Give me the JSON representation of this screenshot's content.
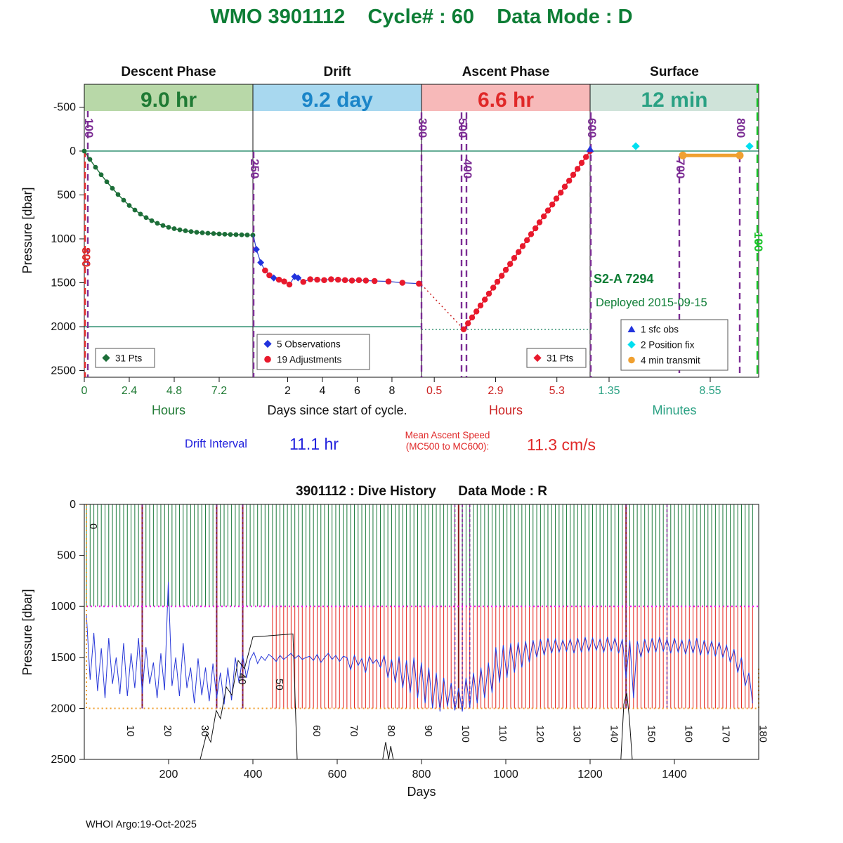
{
  "page": {
    "title": "WMO 3901112    Cycle# : 60    Data Mode : D",
    "title_color": "#0d7d35",
    "footer": "WHOI Argo:19-Oct-2025"
  },
  "chart_data": [
    {
      "type": "line+scatter (cycle timeline, 4 phase axes)",
      "ylabel": "Pressure [dbar]",
      "yticks": [
        -500,
        0,
        500,
        1000,
        1500,
        2000,
        2500
      ],
      "ylim": [
        -760,
        2570
      ],
      "surface_line": 0,
      "park_line": 2000,
      "phases": [
        {
          "title": "Descent Phase",
          "duration": "9.0 hr",
          "band_color": "#b8d8a8",
          "duration_color": "#1f7a34",
          "axis_color": "#1f7a34",
          "axis_unit": "Hours",
          "ticks": [
            "0",
            "2.4",
            "4.8",
            "7.2"
          ],
          "tick_vals": [
            0,
            2.4,
            4.8,
            7.2
          ],
          "range": [
            0,
            9.0
          ]
        },
        {
          "title": "Drift",
          "duration": "9.2 day",
          "band_color": "#a8d8ef",
          "duration_color": "#1b85c8",
          "axis_color": "#111111",
          "axis_unit": "Days since start of cycle.",
          "ticks": [
            "2",
            "4",
            "6",
            "8"
          ],
          "tick_vals": [
            2,
            4,
            6,
            8
          ],
          "range": [
            0,
            9.7
          ]
        },
        {
          "title": "Ascent Phase",
          "duration": "6.6 hr",
          "band_color": "#f7b9b9",
          "duration_color": "#e02828",
          "axis_color": "#cc2222",
          "axis_unit": "Hours",
          "ticks": [
            "0.5",
            "2.9",
            "5.3"
          ],
          "tick_vals": [
            0.5,
            2.9,
            5.3
          ],
          "range": [
            0,
            6.6
          ]
        },
        {
          "title": "Surface",
          "duration": "12 min",
          "band_color": "#cfe3d9",
          "duration_color": "#2aa183",
          "axis_color": "#2aa183",
          "axis_unit": "Minutes",
          "ticks": [
            "1.35",
            "8.55"
          ],
          "tick_vals": [
            1.35,
            8.55
          ],
          "range": [
            0,
            12
          ]
        }
      ],
      "mc_lines": [
        {
          "label": "100",
          "x": 125,
          "y1": 158,
          "y2": 537,
          "ly": 168,
          "color": "#7c2d94"
        },
        {
          "label": "800",
          "x": 121,
          "y1": 215,
          "y2": 537,
          "ly": 352,
          "color": "#e02828"
        },
        {
          "label": "250",
          "x": 361,
          "y1": 216,
          "y2": 537,
          "ly": 226,
          "color": "#7c2d94"
        },
        {
          "label": "300",
          "x": 600,
          "y1": 160,
          "y2": 537,
          "ly": 168,
          "color": "#7c2d94"
        },
        {
          "label": "500",
          "x": 657,
          "y1": 160,
          "y2": 537,
          "ly": 168,
          "color": "#7c2d94"
        },
        {
          "label": "400",
          "x": 664,
          "y1": 160,
          "y2": 537,
          "ly": 226,
          "color": "#7c2d94"
        },
        {
          "label": "600",
          "x": 841,
          "y1": 160,
          "y2": 537,
          "ly": 168,
          "color": "#7c2d94"
        },
        {
          "label": "700",
          "x": 967,
          "y1": 222,
          "y2": 537,
          "ly": 226,
          "color": "#7c2d94"
        },
        {
          "label": "800",
          "x": 1053,
          "y1": 222,
          "y2": 537,
          "ly": 168,
          "color": "#7c2d94"
        },
        {
          "label": "100",
          "x": 1078,
          "y1": 120,
          "y2": 537,
          "ly": 330,
          "color": "#17c427",
          "dash": "12,8"
        }
      ],
      "descent": {
        "color": "#1c6e38",
        "hours": [
          0,
          0.3,
          0.6,
          0.9,
          1.2,
          1.5,
          1.8,
          2.1,
          2.4,
          2.7,
          3,
          3.3,
          3.6,
          3.9,
          4.2,
          4.5,
          4.8,
          5.1,
          5.4,
          5.7,
          6,
          6.3,
          6.6,
          6.9,
          7.2,
          7.5,
          7.8,
          8.1,
          8.4,
          8.7,
          9
        ],
        "pressure": [
          0,
          95,
          185,
          270,
          350,
          425,
          495,
          560,
          620,
          672,
          718,
          758,
          793,
          823,
          848,
          868,
          884,
          897,
          908,
          917,
          925,
          931,
          936,
          940,
          944,
          947,
          950,
          952,
          954,
          956,
          958
        ]
      },
      "drift": {
        "obs_color": "#2233dd",
        "adj_color": "#e8192c",
        "days": [
          0.05,
          0.2,
          0.45,
          0.7,
          0.95,
          1.2,
          1.5,
          1.8,
          2.1,
          2.4,
          2.6,
          2.9,
          3.3,
          3.7,
          4.1,
          4.5,
          4.9,
          5.3,
          5.7,
          6.1,
          6.5,
          7,
          7.8,
          8.6,
          9.55
        ],
        "pressure": [
          980,
          1120,
          1270,
          1360,
          1415,
          1445,
          1465,
          1485,
          1520,
          1430,
          1445,
          1490,
          1460,
          1465,
          1470,
          1460,
          1465,
          1470,
          1475,
          1470,
          1475,
          1480,
          1485,
          1500,
          1510
        ],
        "type": [
          "l",
          "b",
          "b",
          "r",
          "r",
          "b",
          "r",
          "r",
          "r",
          "b",
          "b",
          "r",
          "r",
          "r",
          "r",
          "r",
          "r",
          "r",
          "r",
          "r",
          "r",
          "r",
          "r",
          "r",
          "r"
        ]
      },
      "deep_descent": {
        "hours": [
          0,
          1.65
        ],
        "pressure": [
          1520,
          2030
        ]
      },
      "ascent": {
        "color": "#e8192c",
        "hours": [
          1.65,
          1.82,
          1.98,
          2.15,
          2.31,
          2.48,
          2.64,
          2.81,
          2.97,
          3.14,
          3.3,
          3.47,
          3.63,
          3.8,
          3.96,
          4.13,
          4.29,
          4.46,
          4.62,
          4.79,
          4.95,
          5.12,
          5.28,
          5.45,
          5.61,
          5.78,
          5.94,
          6.11,
          6.27,
          6.44,
          6.6
        ],
        "pressure": [
          2030,
          1962,
          1895,
          1827,
          1759,
          1692,
          1624,
          1556,
          1489,
          1421,
          1353,
          1286,
          1218,
          1150,
          1083,
          1015,
          947,
          880,
          812,
          744,
          677,
          609,
          541,
          474,
          406,
          338,
          271,
          203,
          135,
          68,
          0
        ]
      },
      "surface_items": {
        "sfc_obs": {
          "minutes": 0,
          "pressure": -25,
          "color": "#2233dd"
        },
        "position_fixes": {
          "minutes": [
            3.25,
            11.35
          ],
          "pressure": -55,
          "color": "#00dff0"
        },
        "transmit": {
          "minutes": [
            6.6,
            10.65
          ],
          "pressure": 50,
          "color": "#f0a030"
        }
      },
      "legends": [
        {
          "x": 136,
          "y": 496,
          "w": 84,
          "h": 27,
          "items": [
            {
              "marker": "diamond",
              "color": "#1c6e38",
              "label": "31 Pts"
            }
          ]
        },
        {
          "x": 366,
          "y": 476,
          "w": 160,
          "h": 50,
          "items": [
            {
              "marker": "diamond",
              "color": "#2233dd",
              "label": "5 Observations"
            },
            {
              "marker": "circle",
              "color": "#e8192c",
              "label": "19 Adjustments"
            }
          ]
        },
        {
          "x": 750,
          "y": 496,
          "w": 84,
          "h": 27,
          "items": [
            {
              "marker": "diamond",
              "color": "#e8192c",
              "label": "31 Pts"
            }
          ]
        },
        {
          "x": 884,
          "y": 455,
          "w": 152,
          "h": 72,
          "items": [
            {
              "marker": "triangle",
              "color": "#2233dd",
              "label": "1 sfc obs"
            },
            {
              "marker": "diamond",
              "color": "#00dff0",
              "label": "2 Position fix"
            },
            {
              "marker": "circle",
              "color": "#f0a030",
              "label": "4 min transmit"
            }
          ]
        }
      ],
      "annotations": {
        "float_id": "S2-A 7294",
        "deployed": "Deployed 2015-09-15",
        "green": "#0d7d35",
        "drift_interval_label": "Drift Interval",
        "drift_interval_value": "11.1 hr",
        "ascent_speed_label_1": "Mean Ascent Speed",
        "ascent_speed_label_2": "(MC500 to MC600):",
        "ascent_speed_value": "11.3 cm/s"
      }
    },
    {
      "type": "line (dive history, one profile per cycle)",
      "title": "3901112 : Dive History      Data Mode : R",
      "ylabel": "Pressure [dbar]",
      "xlabel": "Days",
      "yticks": [
        0,
        500,
        1000,
        1500,
        2000,
        2500
      ],
      "xticks": [
        200,
        400,
        600,
        800,
        1000,
        1200,
        1400
      ],
      "xlim": [
        0,
        1600
      ],
      "ylim": [
        0,
        2500
      ],
      "park_pressure": 1000,
      "profile_pressure": 2000,
      "n_cycles": 180,
      "days_per_cycle": 8.83,
      "green_color": "#1b7a3b",
      "red_color": "#e3251c",
      "blue_color": "#2737d8",
      "maroon_color": "#8b1a1a",
      "purple_color": "#7c2d94",
      "magenta_color": "#f000f0",
      "orange_color": "#f0a030",
      "red_start_cycle": 50,
      "maroon_cycles": [
        15,
        35,
        42,
        100,
        145
      ],
      "purple_cycles": [
        15,
        35,
        42,
        99,
        101,
        103,
        145,
        156
      ],
      "blue_depths": [
        1080,
        1720,
        1260,
        1830,
        1410,
        1900,
        1310,
        1760,
        1500,
        1860,
        1360,
        1880,
        1460,
        1800,
        1310,
        1850,
        1400,
        1760,
        1550,
        1900,
        1460,
        1820,
        760,
        1780,
        1500,
        1880,
        1360,
        1800,
        1600,
        1950,
        1510,
        1870,
        1600,
        1930,
        1560,
        1900,
        1650,
        1960,
        1600,
        1920,
        1500,
        1750,
        1480,
        1700,
        1520,
        1450,
        1560,
        1490,
        1530,
        1470,
        1500,
        1540,
        1480,
        1520,
        1490,
        1460,
        1510,
        1480,
        1520,
        1500,
        1490,
        1530,
        1470,
        1550,
        1500,
        1460,
        1520,
        1480,
        1540,
        1490,
        1500,
        1620,
        1480,
        1580,
        1510,
        1650,
        1490,
        1560,
        1520,
        1600,
        1480,
        1700,
        1520,
        1750,
        1490,
        1800,
        1530,
        1850,
        1500,
        1900,
        1550,
        1950,
        1600,
        2000,
        1650,
        2030,
        1700,
        1980,
        1750,
        2020,
        1800,
        2030,
        1700,
        1990,
        1650,
        1950,
        1600,
        1900,
        1550,
        1850,
        1400,
        1750,
        1380,
        1700,
        1360,
        1650,
        1350,
        1600,
        1340,
        1550,
        1330,
        1500,
        1320,
        1480,
        1310,
        1460,
        1320,
        1450,
        1330,
        1440,
        1320,
        1460,
        1310,
        1450,
        1300,
        1440,
        1310,
        1430,
        1320,
        1450,
        1300,
        1440,
        1310,
        1460,
        1320,
        1700,
        1330,
        1900,
        1340,
        1500,
        1320,
        1460,
        1310,
        1450,
        1300,
        1440,
        1320,
        1460,
        1310,
        1450,
        1330,
        1470,
        1320,
        1460,
        1310,
        1480,
        1330,
        1470,
        1340,
        1490,
        1350,
        1500,
        1380,
        1550,
        1420,
        1650,
        1500,
        1780,
        1650,
        1950
      ],
      "contours": [
        [
          [
            275,
            2500
          ],
          [
            290,
            2250
          ],
          [
            300,
            2330
          ],
          [
            313,
            2020
          ],
          [
            323,
            2100
          ],
          [
            337,
            1790
          ],
          [
            350,
            1870
          ],
          [
            365,
            1530
          ],
          [
            380,
            1610
          ],
          [
            400,
            1300
          ],
          [
            495,
            1270
          ],
          [
            505,
            2500
          ]
        ],
        [
          [
            708,
            2500
          ],
          [
            715,
            2330
          ],
          [
            722,
            2500
          ],
          [
            727,
            2370
          ],
          [
            733,
            2500
          ]
        ],
        [
          [
            1273,
            2500
          ],
          [
            1280,
            1960
          ],
          [
            1287,
            1850
          ],
          [
            1293,
            2090
          ],
          [
            1300,
            2500
          ]
        ]
      ],
      "cycle_labels": [
        {
          "label": "0",
          "y": 85
        },
        {
          "label": "10"
        },
        {
          "label": "20"
        },
        {
          "label": "30"
        },
        {
          "label": "40",
          "y": 298
        },
        {
          "label": "50",
          "y": 306
        },
        {
          "label": "60"
        },
        {
          "label": "70"
        },
        {
          "label": "80"
        },
        {
          "label": "90"
        },
        {
          "label": "100"
        },
        {
          "label": "110"
        },
        {
          "label": "120"
        },
        {
          "label": "130"
        },
        {
          "label": "140"
        },
        {
          "label": "150"
        },
        {
          "label": "160"
        },
        {
          "label": "170"
        },
        {
          "label": "180"
        }
      ],
      "label_default_y": 372
    }
  ]
}
